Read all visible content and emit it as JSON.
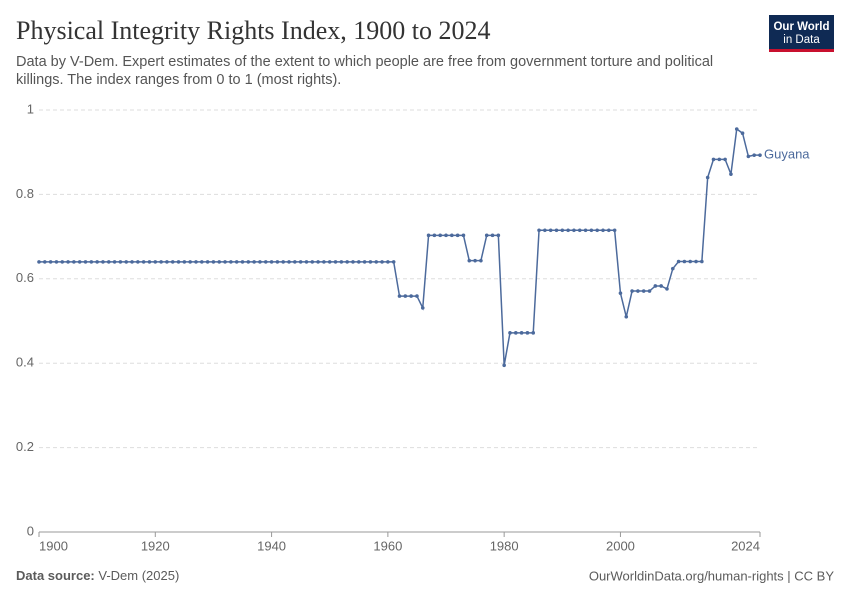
{
  "logo": [
    "Our World",
    "in Data"
  ],
  "chart_data": {
    "type": "line",
    "title": "Physical Integrity Rights Index, 1900 to 2024",
    "subtitle": [
      "Data by V-Dem. Expert estimates of the extent to which people are free from government torture and political",
      "killings. The index ranges from 0 to 1 (most rights)."
    ],
    "source_label": "Data source:",
    "source": "V-Dem (2025)",
    "footer": "OurWorldinData.org/human-rights | CC BY",
    "x": [
      1900,
      1901,
      1902,
      1903,
      1904,
      1905,
      1906,
      1907,
      1908,
      1909,
      1910,
      1911,
      1912,
      1913,
      1914,
      1915,
      1916,
      1917,
      1918,
      1919,
      1920,
      1921,
      1922,
      1923,
      1924,
      1925,
      1926,
      1927,
      1928,
      1929,
      1930,
      1931,
      1932,
      1933,
      1934,
      1935,
      1936,
      1937,
      1938,
      1939,
      1940,
      1941,
      1942,
      1943,
      1944,
      1945,
      1946,
      1947,
      1948,
      1949,
      1950,
      1951,
      1952,
      1953,
      1954,
      1955,
      1956,
      1957,
      1958,
      1959,
      1960,
      1961,
      1962,
      1963,
      1964,
      1965,
      1966,
      1967,
      1968,
      1969,
      1970,
      1971,
      1972,
      1973,
      1974,
      1975,
      1976,
      1977,
      1978,
      1979,
      1980,
      1981,
      1982,
      1983,
      1984,
      1985,
      1986,
      1987,
      1988,
      1989,
      1990,
      1991,
      1992,
      1993,
      1994,
      1995,
      1996,
      1997,
      1998,
      1999,
      2000,
      2001,
      2002,
      2003,
      2004,
      2005,
      2006,
      2007,
      2008,
      2009,
      2010,
      2011,
      2012,
      2013,
      2014,
      2015,
      2016,
      2017,
      2018,
      2019,
      2020,
      2021,
      2022,
      2023,
      2024
    ],
    "series": [
      {
        "name": "Guyana",
        "color": "#4c6a9c",
        "values": [
          0.64,
          0.64,
          0.64,
          0.64,
          0.64,
          0.64,
          0.64,
          0.64,
          0.64,
          0.64,
          0.64,
          0.64,
          0.64,
          0.64,
          0.64,
          0.64,
          0.64,
          0.64,
          0.64,
          0.64,
          0.64,
          0.64,
          0.64,
          0.64,
          0.64,
          0.64,
          0.64,
          0.64,
          0.64,
          0.64,
          0.64,
          0.64,
          0.64,
          0.64,
          0.64,
          0.64,
          0.64,
          0.64,
          0.64,
          0.64,
          0.64,
          0.64,
          0.64,
          0.64,
          0.64,
          0.64,
          0.64,
          0.64,
          0.64,
          0.64,
          0.64,
          0.64,
          0.64,
          0.64,
          0.64,
          0.64,
          0.64,
          0.64,
          0.64,
          0.64,
          0.64,
          0.64,
          0.559,
          0.559,
          0.559,
          0.559,
          0.531,
          0.703,
          0.703,
          0.703,
          0.703,
          0.703,
          0.703,
          0.703,
          0.643,
          0.643,
          0.643,
          0.703,
          0.703,
          0.703,
          0.395,
          0.472,
          0.472,
          0.472,
          0.472,
          0.472,
          0.715,
          0.715,
          0.715,
          0.715,
          0.715,
          0.715,
          0.715,
          0.715,
          0.715,
          0.715,
          0.715,
          0.715,
          0.715,
          0.715,
          0.566,
          0.51,
          0.571,
          0.571,
          0.571,
          0.571,
          0.583,
          0.583,
          0.576,
          0.624,
          0.641,
          0.641,
          0.641,
          0.641,
          0.641,
          0.84,
          0.883,
          0.883,
          0.883,
          0.848,
          0.955,
          0.945,
          0.89,
          0.893,
          0.893
        ]
      }
    ],
    "xlim": [
      1900,
      2024
    ],
    "xticks": [
      1900,
      1920,
      1940,
      1960,
      1980,
      2000,
      2024
    ],
    "ylim": [
      0,
      1
    ],
    "yticks": [
      0,
      0.2,
      0.4,
      0.6,
      0.8,
      1
    ],
    "grid": true
  }
}
